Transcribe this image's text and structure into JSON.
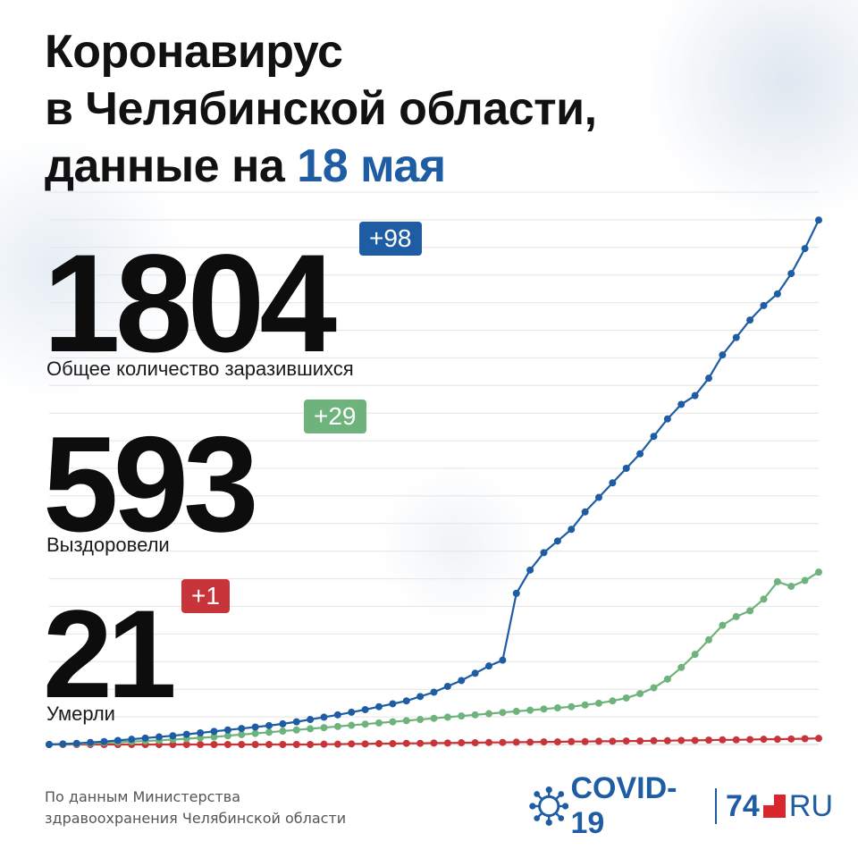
{
  "title": {
    "line1": "Коронавирус",
    "line2": "в Челябинской области,",
    "line3_prefix": "данные на ",
    "line3_date": "18 мая"
  },
  "stats": {
    "total": {
      "value": "1804",
      "delta": "+98",
      "label": "Общее количество заразившихся"
    },
    "recovered": {
      "value": "593",
      "delta": "+29",
      "label": "Выздоровели"
    },
    "deaths": {
      "value": "21",
      "delta": "+1",
      "label": "Умерли"
    }
  },
  "source": {
    "line1": "По данным Министерства",
    "line2": "здравоохранения Челябинской области"
  },
  "logo": {
    "covid": "COVID-19",
    "number": "74",
    "ru": "RU",
    "icon": "virus-icon"
  },
  "colors": {
    "total": "#1e5ca3",
    "recovered": "#6fb37c",
    "deaths": "#c7353b",
    "grid": "#e4e4e4"
  },
  "chart_data": {
    "type": "line",
    "title": "",
    "xlabel": "",
    "ylabel": "",
    "grid": true,
    "ylim": [
      0,
      1900
    ],
    "series": [
      {
        "name": "Общее количество заразившихся",
        "color": "#1e5ca3",
        "values": [
          0,
          2,
          4,
          7,
          10,
          14,
          18,
          22,
          26,
          30,
          35,
          40,
          45,
          50,
          55,
          60,
          65,
          71,
          78,
          86,
          94,
          102,
          111,
          120,
          130,
          140,
          150,
          165,
          180,
          200,
          220,
          245,
          270,
          290,
          520,
          600,
          660,
          700,
          740,
          800,
          850,
          900,
          950,
          1000,
          1060,
          1120,
          1170,
          1200,
          1260,
          1340,
          1400,
          1460,
          1510,
          1550,
          1620,
          1706,
          1804
        ]
      },
      {
        "name": "Выздоровели",
        "color": "#6fb37c",
        "values": [
          0,
          1,
          2,
          4,
          6,
          8,
          10,
          12,
          14,
          17,
          20,
          23,
          26,
          30,
          34,
          38,
          42,
          46,
          50,
          54,
          58,
          62,
          66,
          70,
          74,
          78,
          82,
          86,
          90,
          94,
          98,
          102,
          106,
          110,
          114,
          118,
          122,
          126,
          130,
          136,
          142,
          150,
          160,
          175,
          195,
          225,
          265,
          310,
          360,
          410,
          440,
          460,
          500,
          560,
          544,
          564,
          593
        ]
      },
      {
        "name": "Умерли",
        "color": "#c7353b",
        "values": [
          0,
          0,
          0,
          0,
          0,
          0,
          0,
          0,
          0,
          0,
          0,
          0,
          0,
          0,
          0,
          0,
          0,
          0,
          0,
          0,
          1,
          1,
          2,
          2,
          3,
          3,
          4,
          4,
          5,
          5,
          6,
          6,
          7,
          7,
          8,
          8,
          9,
          9,
          10,
          10,
          11,
          11,
          12,
          12,
          13,
          13,
          14,
          14,
          15,
          16,
          16,
          17,
          18,
          18,
          19,
          20,
          21
        ]
      }
    ]
  }
}
